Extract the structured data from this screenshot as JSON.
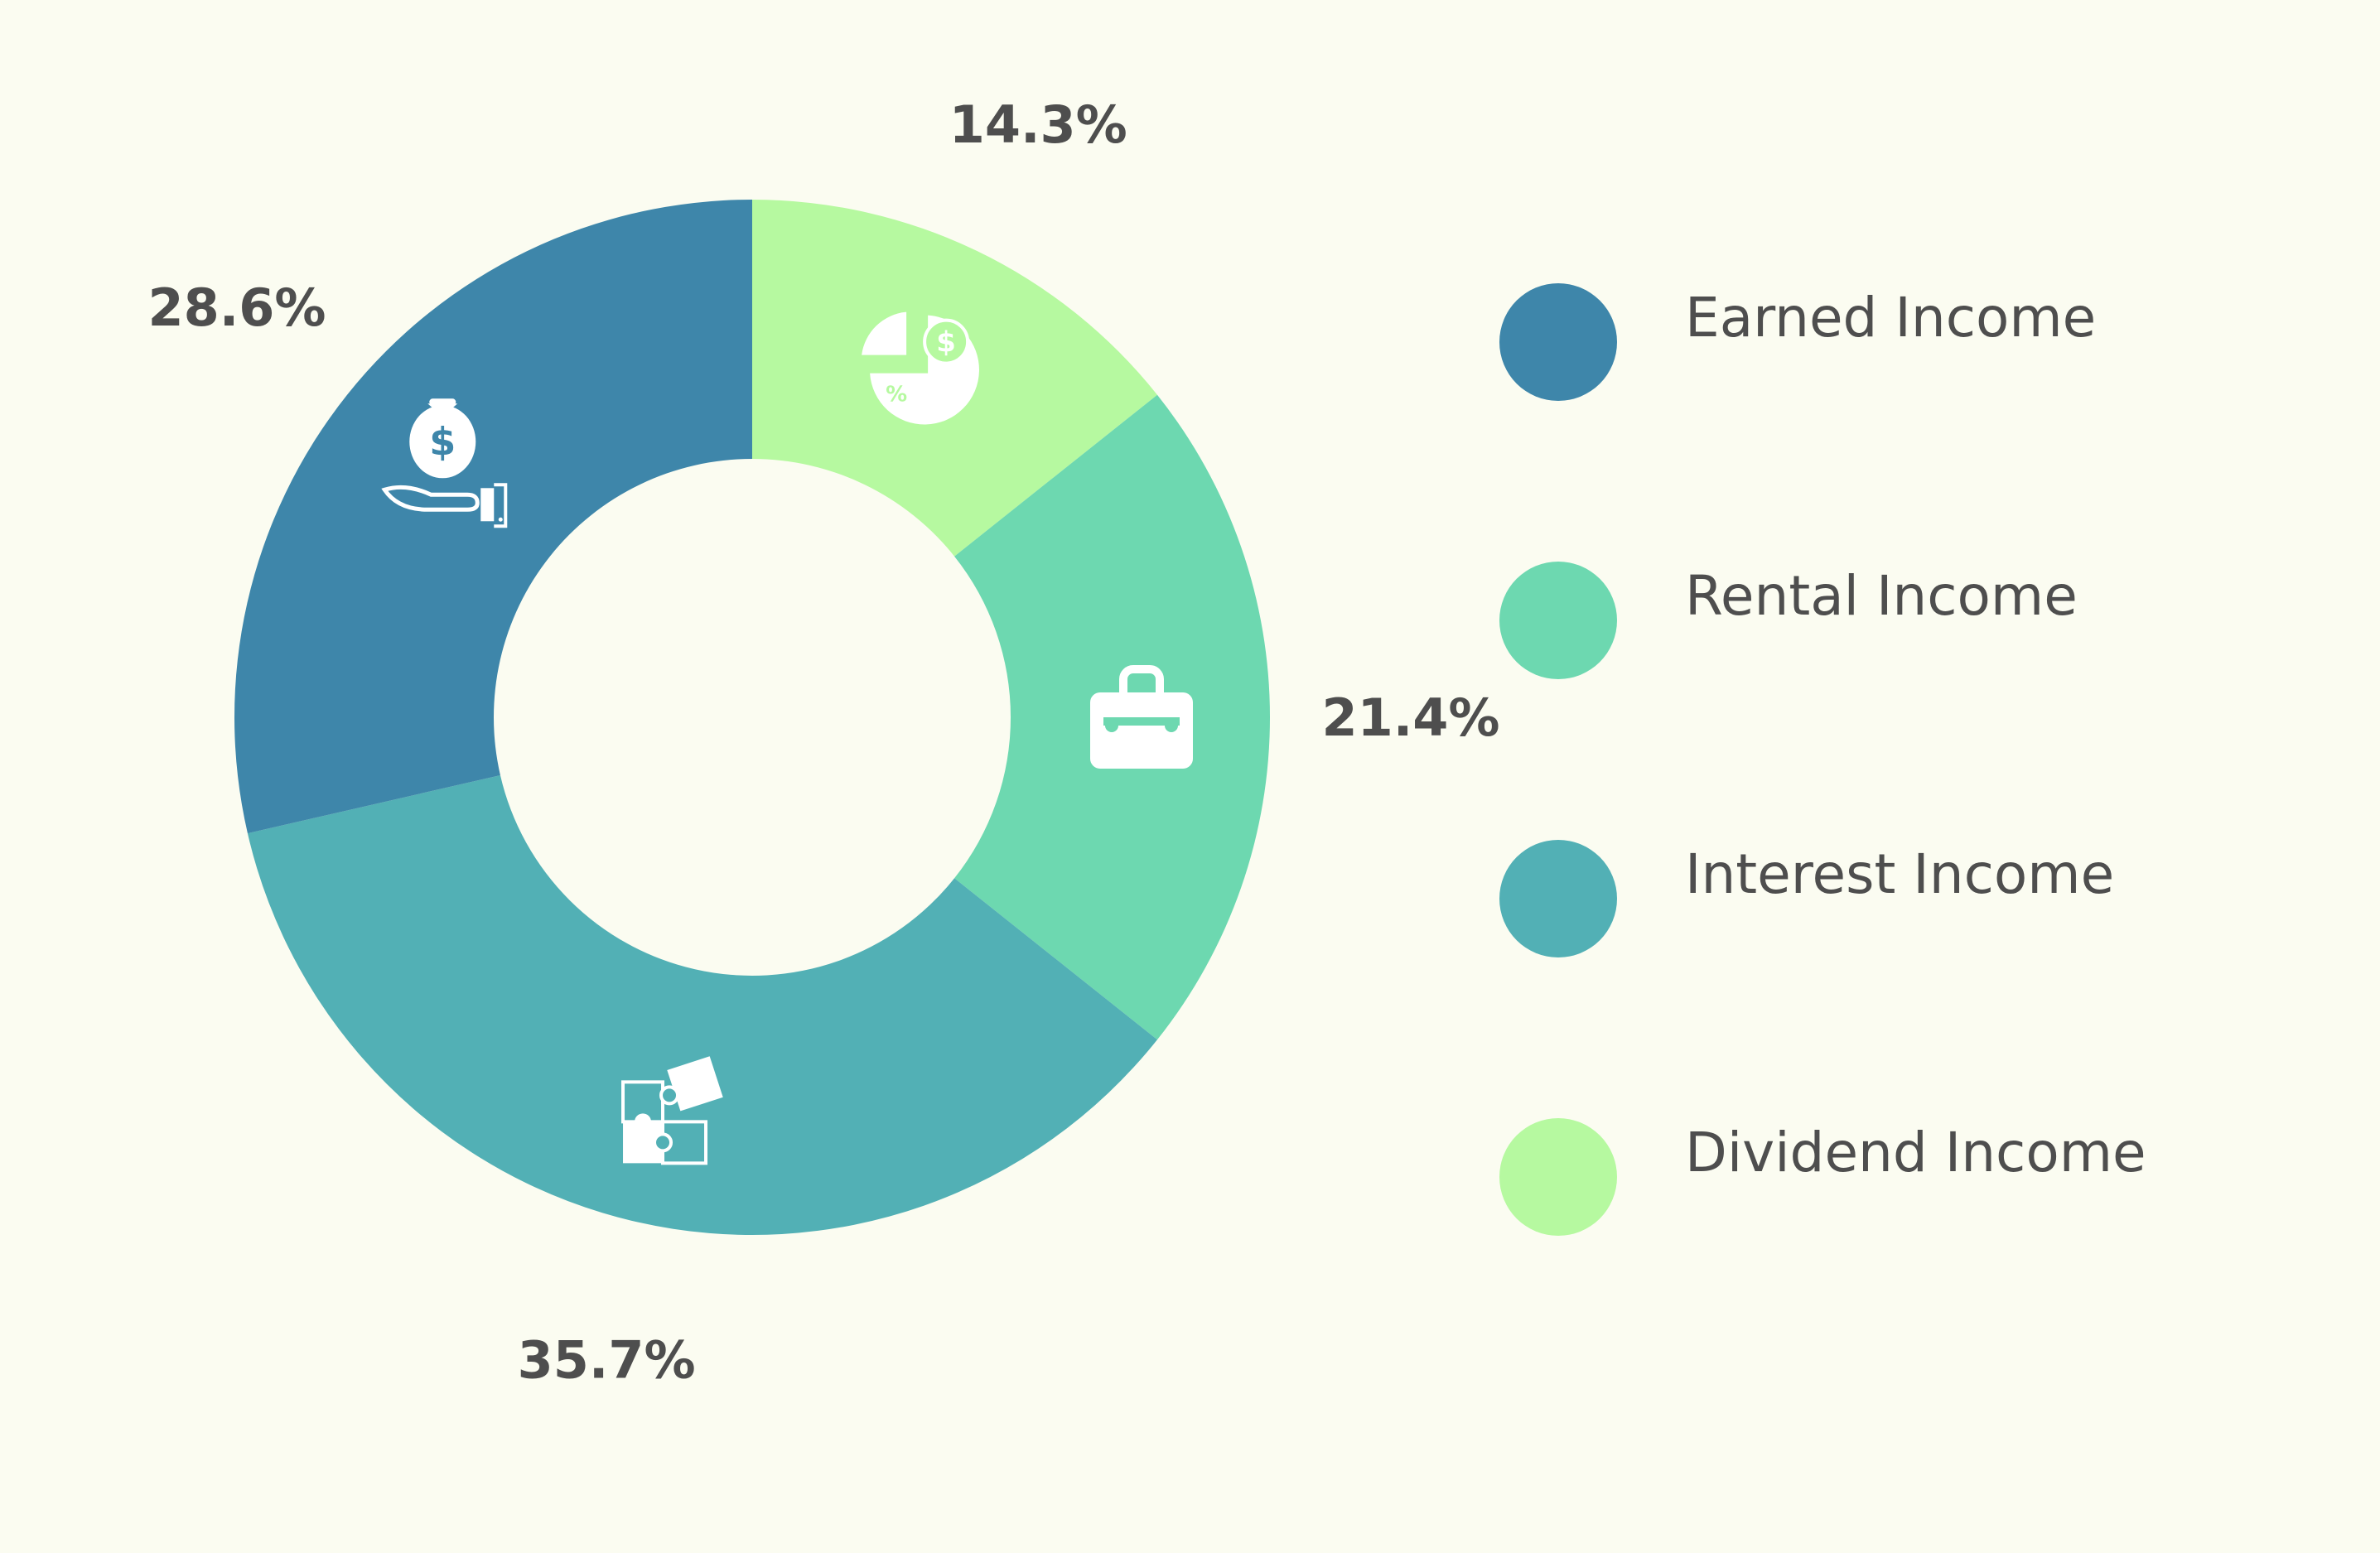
{
  "chart_data": {
    "type": "pie",
    "variant": "donut",
    "title": "",
    "categories": [
      "Dividend Income",
      "Rental Income",
      "Interest Income",
      "Earned Income"
    ],
    "values": [
      14.3,
      21.4,
      35.7,
      28.6
    ],
    "value_labels": [
      "14.3%",
      "21.4%",
      "35.7%",
      "28.6%"
    ],
    "colors": [
      "#b6f9a0",
      "#6dd8b0",
      "#52b0b5",
      "#3e86aa"
    ],
    "slice_icons": [
      "pie-chart-dollar-icon",
      "briefcase-icon",
      "puzzle-icon",
      "hand-money-bag-icon"
    ],
    "legend": {
      "placement": "right",
      "entries": [
        {
          "label": "Earned Income",
          "color": "#3e86aa"
        },
        {
          "label": "Rental Income",
          "color": "#6dd8b0"
        },
        {
          "label": "Interest Income",
          "color": "#52b0b5"
        },
        {
          "label": "Dividend Income",
          "color": "#b6f9a0"
        }
      ]
    }
  }
}
